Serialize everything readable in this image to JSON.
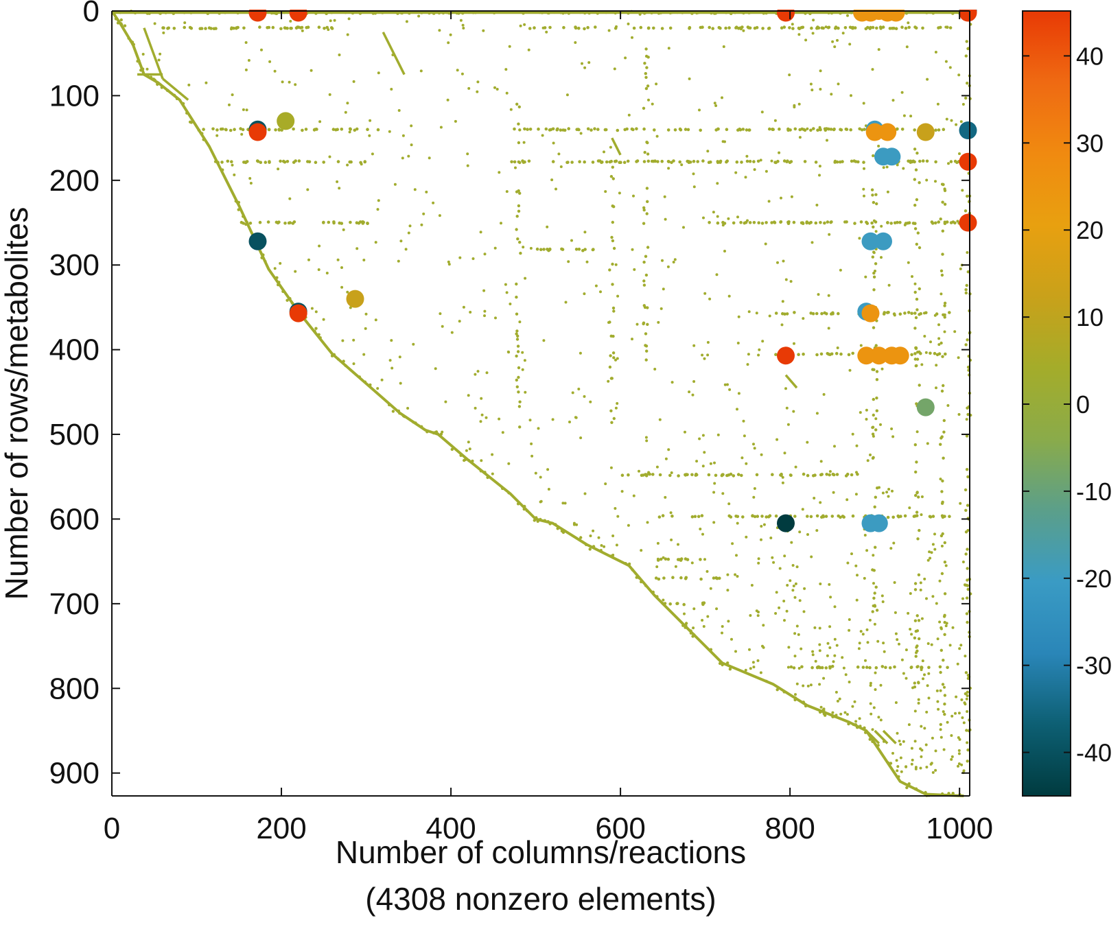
{
  "chart_data": {
    "type": "scatter",
    "title": "",
    "xlabel": "Number of columns/reactions",
    "xlabel_line2": "(4308 nonzero elements)",
    "ylabel": "Number of rows/metabolites",
    "xlim": [
      0,
      1012
    ],
    "ylim": [
      0,
      927
    ],
    "y_axis_inverted": true,
    "grid": false,
    "x_ticks": [
      0,
      200,
      400,
      600,
      800,
      1000
    ],
    "y_ticks": [
      0,
      100,
      200,
      300,
      400,
      500,
      600,
      700,
      800,
      900
    ],
    "colorbar": {
      "range": [
        -45,
        45
      ],
      "ticks": [
        40,
        30,
        20,
        10,
        0,
        -10,
        -20,
        -30,
        -40
      ],
      "colors": [
        "#003b3f",
        "#0d5f73",
        "#2a86b8",
        "#3a9bc4",
        "#5b9f8a",
        "#8aab4a",
        "#a4ac2a",
        "#c9a11a",
        "#e8a010",
        "#f08a10",
        "#ef6a12",
        "#e83a05"
      ]
    },
    "nonzero_count": 4308,
    "diagonal_path": [
      [
        0,
        0
      ],
      [
        10,
        15
      ],
      [
        25,
        40
      ],
      [
        38,
        75
      ],
      [
        55,
        85
      ],
      [
        80,
        105
      ],
      [
        115,
        160
      ],
      [
        150,
        230
      ],
      [
        185,
        305
      ],
      [
        220,
        355
      ],
      [
        260,
        405
      ],
      [
        300,
        440
      ],
      [
        340,
        475
      ],
      [
        370,
        495
      ],
      [
        385,
        500
      ],
      [
        420,
        530
      ],
      [
        470,
        570
      ],
      [
        500,
        600
      ],
      [
        520,
        605
      ],
      [
        560,
        630
      ],
      [
        610,
        655
      ],
      [
        640,
        690
      ],
      [
        680,
        730
      ],
      [
        720,
        770
      ],
      [
        780,
        795
      ],
      [
        820,
        820
      ],
      [
        870,
        840
      ],
      [
        890,
        850
      ],
      [
        930,
        910
      ],
      [
        960,
        925
      ],
      [
        1005,
        927
      ]
    ],
    "horizontal_bands": [
      {
        "y": 2,
        "x": [
          0,
          1010
        ]
      },
      {
        "y": 20,
        "x": [
          60,
          260
        ]
      },
      {
        "y": 20,
        "x": [
          480,
          990
        ]
      },
      {
        "y": 140,
        "x": [
          100,
          320
        ]
      },
      {
        "y": 140,
        "x": [
          470,
          1010
        ]
      },
      {
        "y": 178,
        "x": [
          120,
          300
        ]
      },
      {
        "y": 178,
        "x": [
          470,
          1000
        ]
      },
      {
        "y": 250,
        "x": [
          150,
          320
        ]
      },
      {
        "y": 250,
        "x": [
          700,
          1000
        ]
      },
      {
        "y": 282,
        "x": [
          500,
          570
        ]
      },
      {
        "y": 357,
        "x": [
          780,
          990
        ]
      },
      {
        "y": 405,
        "x": [
          780,
          990
        ]
      },
      {
        "y": 548,
        "x": [
          600,
          880
        ]
      },
      {
        "y": 597,
        "x": [
          640,
          990
        ]
      },
      {
        "y": 648,
        "x": [
          640,
          700
        ]
      },
      {
        "y": 670,
        "x": [
          640,
          720
        ]
      },
      {
        "y": 700,
        "x": [
          650,
          700
        ]
      },
      {
        "y": 775,
        "x": [
          800,
          990
        ]
      }
    ],
    "vertical_bands": [
      {
        "x": 1010,
        "y": [
          0,
          927
        ]
      },
      {
        "x": 480,
        "y": [
          110,
          500
        ]
      },
      {
        "x": 630,
        "y": [
          30,
          420
        ]
      },
      {
        "x": 590,
        "y": [
          180,
          500
        ]
      },
      {
        "x": 900,
        "y": [
          150,
          720
        ]
      },
      {
        "x": 950,
        "y": [
          150,
          800
        ]
      },
      {
        "x": 980,
        "y": [
          200,
          850
        ]
      }
    ],
    "highlighted_points": [
      {
        "x": 172,
        "y": 2,
        "value": 45
      },
      {
        "x": 220,
        "y": 2,
        "value": 45
      },
      {
        "x": 795,
        "y": 2,
        "value": 45
      },
      {
        "x": 1010,
        "y": 0,
        "value": -35
      },
      {
        "x": 1010,
        "y": 2,
        "value": 45
      },
      {
        "x": 885,
        "y": 2,
        "value": 25
      },
      {
        "x": 895,
        "y": 2,
        "value": 25
      },
      {
        "x": 905,
        "y": 0,
        "value": 25
      },
      {
        "x": 915,
        "y": 2,
        "value": 25
      },
      {
        "x": 925,
        "y": 2,
        "value": 25
      },
      {
        "x": 172,
        "y": 140,
        "value": -40
      },
      {
        "x": 172,
        "y": 143,
        "value": 45
      },
      {
        "x": 205,
        "y": 130,
        "value": 5
      },
      {
        "x": 1010,
        "y": 141,
        "value": -35
      },
      {
        "x": 900,
        "y": 140,
        "value": -20
      },
      {
        "x": 900,
        "y": 143,
        "value": 25
      },
      {
        "x": 915,
        "y": 143,
        "value": 25
      },
      {
        "x": 910,
        "y": 172,
        "value": -20
      },
      {
        "x": 920,
        "y": 172,
        "value": -20
      },
      {
        "x": 1010,
        "y": 178,
        "value": 45
      },
      {
        "x": 1010,
        "y": 250,
        "value": 45
      },
      {
        "x": 172,
        "y": 272,
        "value": -40
      },
      {
        "x": 895,
        "y": 272,
        "value": -20
      },
      {
        "x": 910,
        "y": 272,
        "value": -20
      },
      {
        "x": 220,
        "y": 355,
        "value": -40
      },
      {
        "x": 220,
        "y": 357,
        "value": 45
      },
      {
        "x": 890,
        "y": 355,
        "value": -20
      },
      {
        "x": 895,
        "y": 357,
        "value": 25
      },
      {
        "x": 287,
        "y": 340,
        "value": 12
      },
      {
        "x": 960,
        "y": 143,
        "value": 12
      },
      {
        "x": 795,
        "y": 407,
        "value": 45
      },
      {
        "x": 890,
        "y": 407,
        "value": 25
      },
      {
        "x": 905,
        "y": 407,
        "value": 25
      },
      {
        "x": 920,
        "y": 407,
        "value": 25
      },
      {
        "x": 930,
        "y": 407,
        "value": 25
      },
      {
        "x": 960,
        "y": 468,
        "value": -8
      },
      {
        "x": 795,
        "y": 605,
        "value": -45
      },
      {
        "x": 895,
        "y": 605,
        "value": -20
      },
      {
        "x": 905,
        "y": 605,
        "value": -20
      }
    ]
  }
}
